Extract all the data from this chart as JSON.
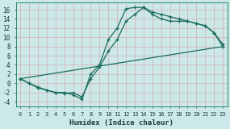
{
  "xlabel": "Humidex (Indice chaleur)",
  "xlim": [
    -0.5,
    23.5
  ],
  "ylim": [
    -5,
    17.5
  ],
  "xticks": [
    0,
    1,
    2,
    3,
    4,
    5,
    6,
    7,
    8,
    9,
    10,
    11,
    12,
    13,
    14,
    15,
    16,
    17,
    18,
    19,
    20,
    21,
    22,
    23
  ],
  "yticks": [
    -4,
    -2,
    0,
    2,
    4,
    6,
    8,
    10,
    12,
    14,
    16
  ],
  "bg_color": "#cce8e8",
  "grid_color": "#b0d0d0",
  "line_color": "#1a6b5a",
  "line1_x": [
    0,
    1,
    2,
    3,
    4,
    5,
    6,
    7,
    8,
    9,
    10,
    11,
    12,
    13,
    14,
    15,
    16,
    17,
    18,
    19,
    20,
    21,
    22,
    23
  ],
  "line1_y": [
    1,
    0,
    -1,
    -1.5,
    -2,
    -2,
    -2.5,
    -3.5,
    2,
    4,
    9.5,
    12,
    16.2,
    16.5,
    16.5,
    15.5,
    15.0,
    14.5,
    14.0,
    13.5,
    13.0,
    12.5,
    11.0,
    8.0
  ],
  "line2_x": [
    0,
    1,
    2,
    3,
    4,
    5,
    6,
    7,
    8,
    9,
    10,
    11,
    12,
    13,
    14,
    15,
    16,
    17,
    18,
    19,
    20,
    21,
    22,
    23
  ],
  "line2_y": [
    1,
    0,
    -0.8,
    -1.5,
    -2,
    -2.2,
    -2.0,
    -3.0,
    1.0,
    3.5,
    7.0,
    9.5,
    13.5,
    15.0,
    16.5,
    15.0,
    14.0,
    13.5,
    13.5,
    13.5,
    13.0,
    12.5,
    11.0,
    8.5
  ],
  "line3_x": [
    0,
    23
  ],
  "line3_y": [
    1,
    8.0
  ]
}
